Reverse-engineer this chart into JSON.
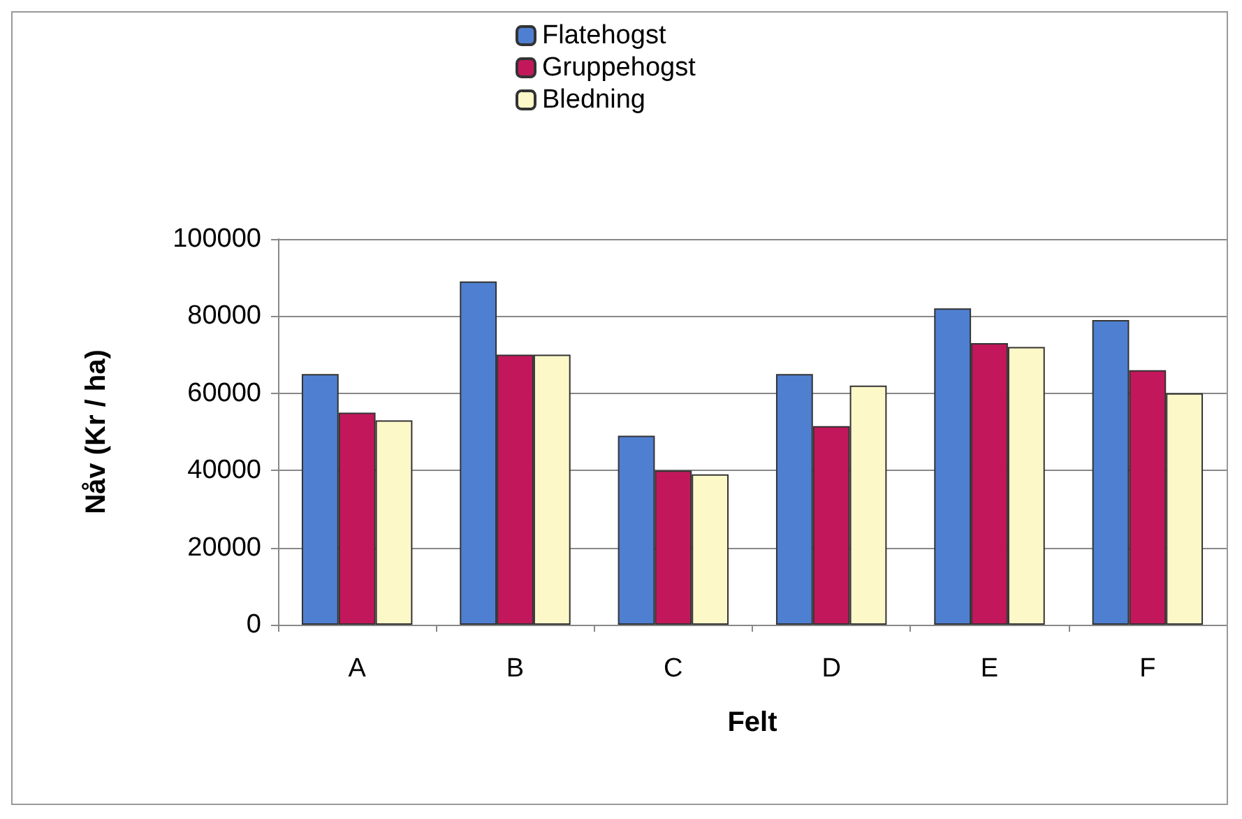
{
  "chart_data": {
    "type": "bar",
    "xlabel": "Felt",
    "ylabel": "Nåv (Kr / ha)",
    "categories": [
      "A",
      "B",
      "C",
      "D",
      "E",
      "F"
    ],
    "series": [
      {
        "name": "Flatehogst",
        "color": "#4f7fd0",
        "values": [
          65000,
          89000,
          49000,
          65000,
          82000,
          79000
        ]
      },
      {
        "name": "Gruppehogst",
        "color": "#c2185b",
        "values": [
          55000,
          70000,
          40000,
          51500,
          73000,
          66000
        ]
      },
      {
        "name": "Bledning",
        "color": "#fdf8c8",
        "values": [
          53000,
          70000,
          39000,
          62000,
          72000,
          60000
        ]
      }
    ],
    "ylim": [
      0,
      100000
    ],
    "yticks": [
      0,
      20000,
      40000,
      60000,
      80000,
      100000
    ],
    "grid": "y",
    "legend": "top"
  }
}
